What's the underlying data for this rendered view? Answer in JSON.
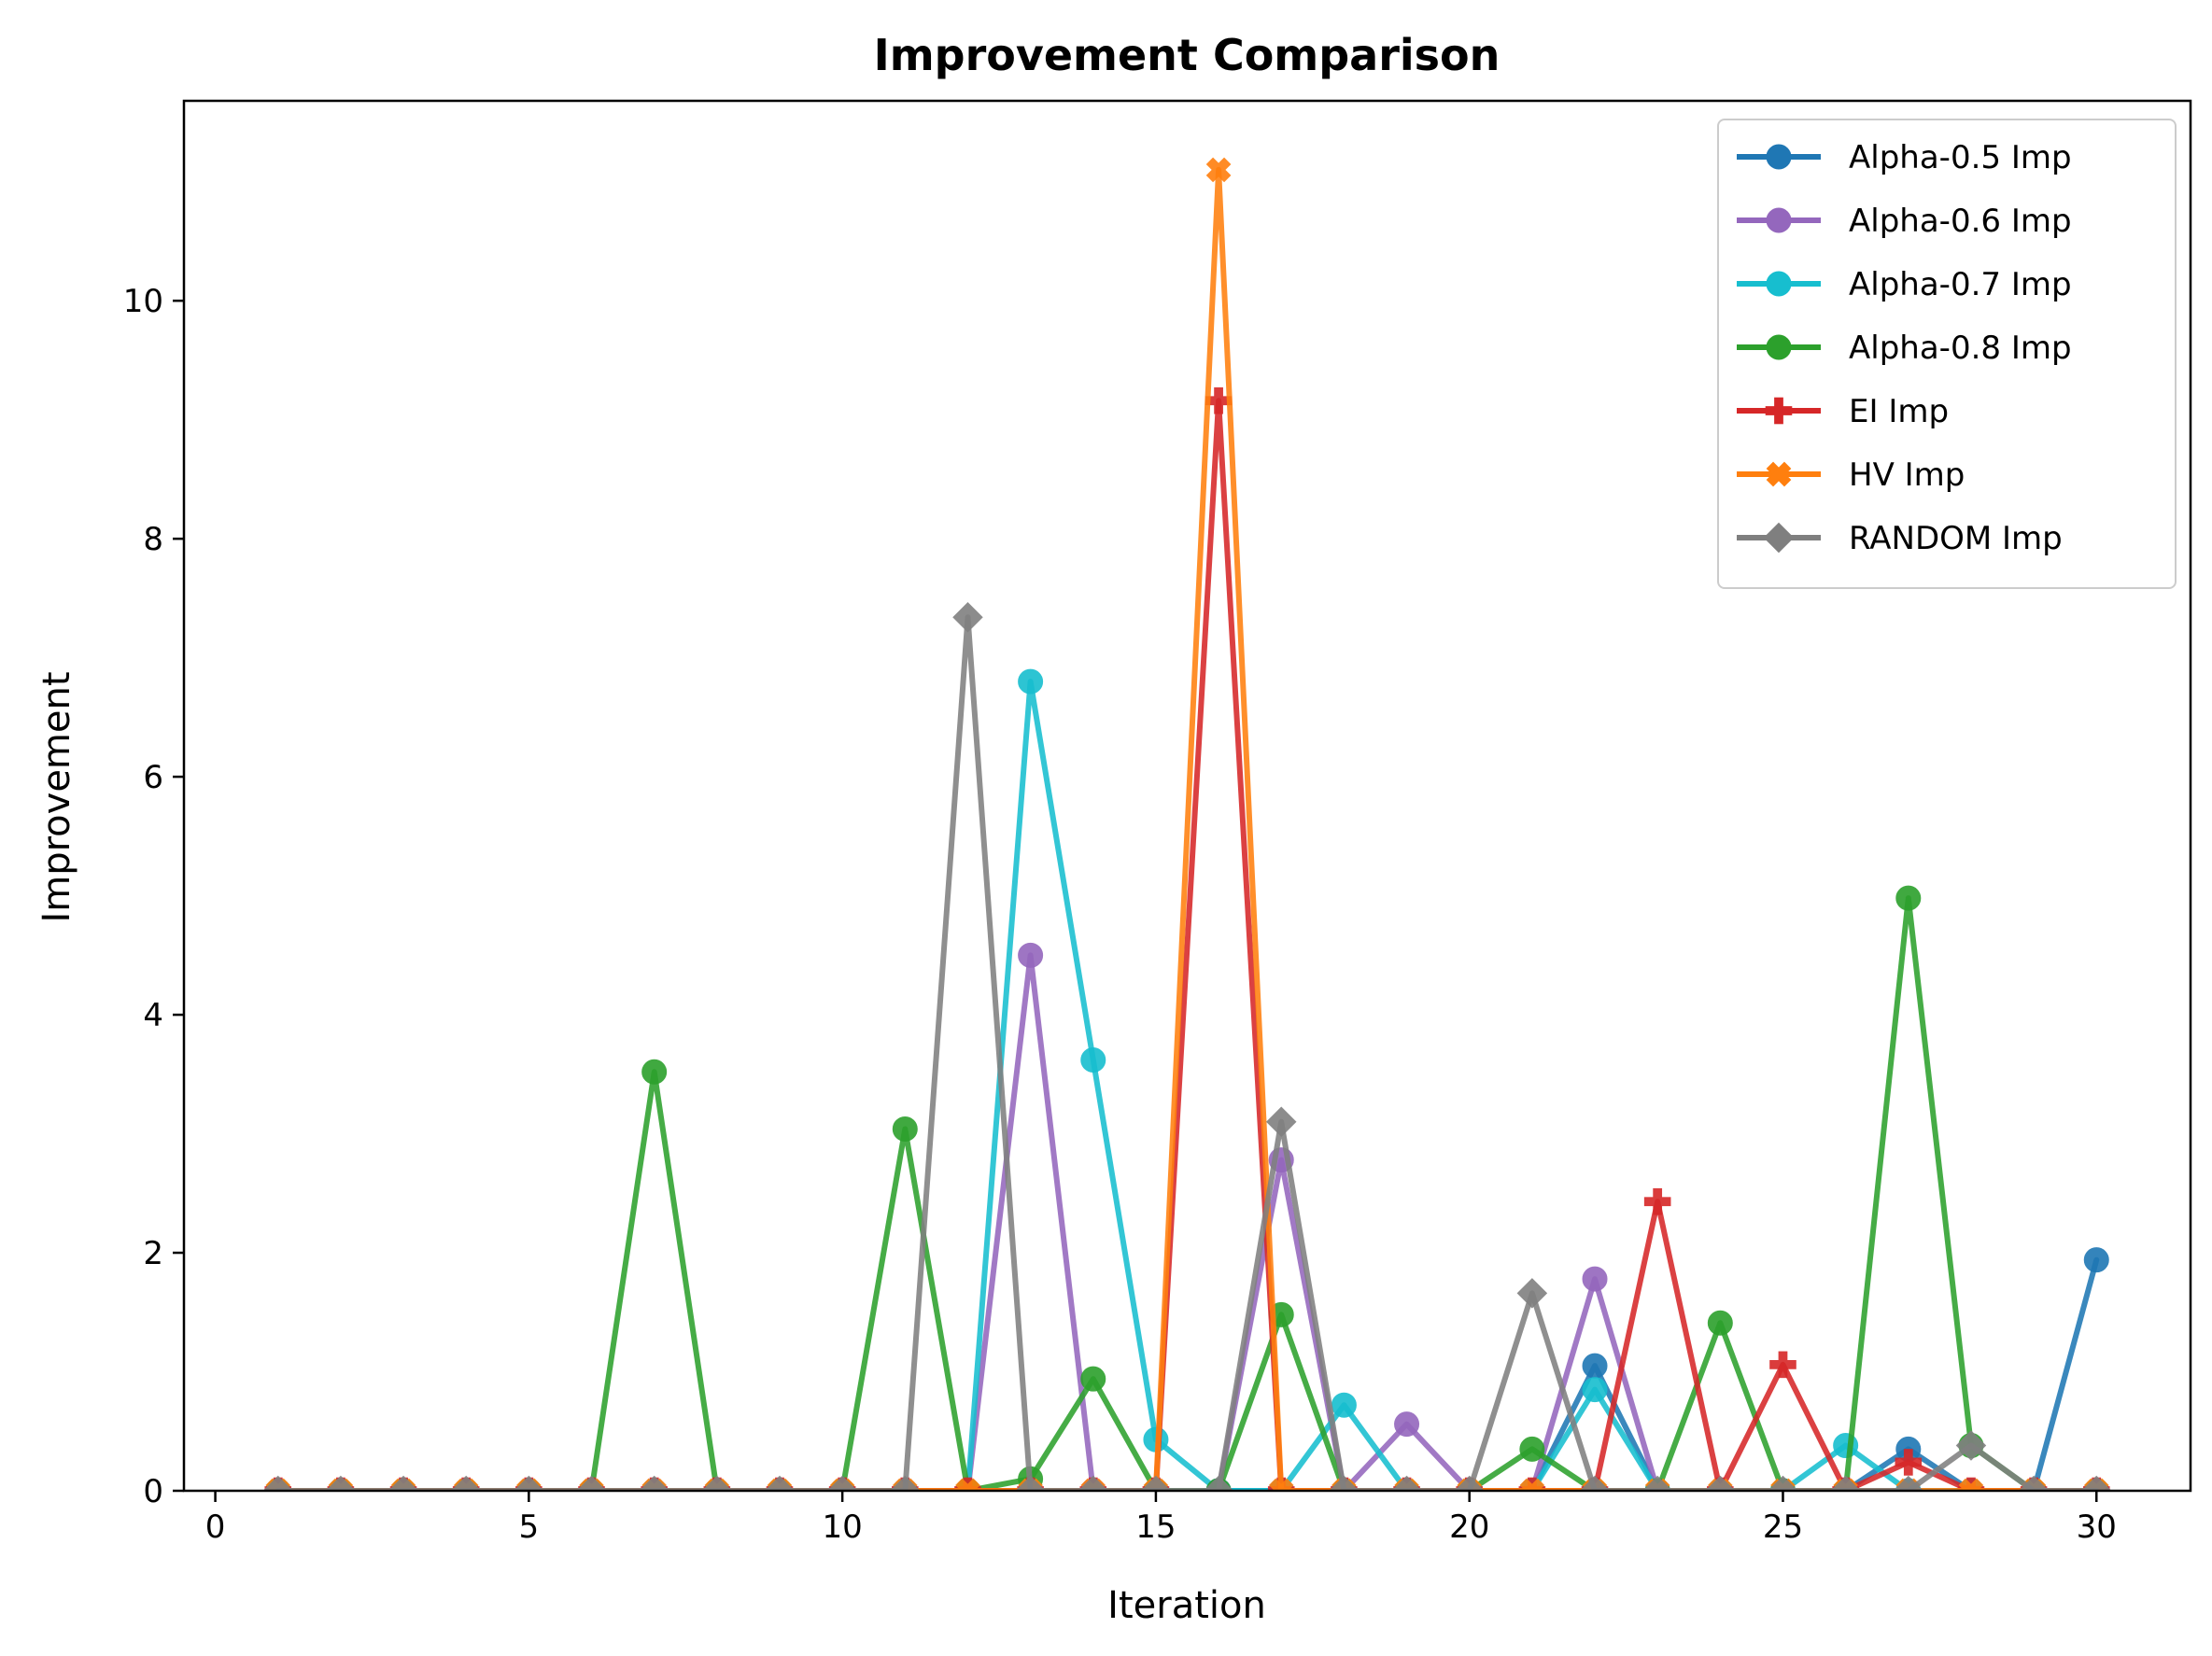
{
  "chart_data": {
    "type": "line",
    "title": "Improvement Comparison",
    "xlabel": "Iteration",
    "ylabel": "Improvement",
    "xlim": [
      -0.5,
      31.5
    ],
    "ylim": [
      0,
      11.68
    ],
    "xticks": [
      0,
      5,
      10,
      15,
      20,
      25,
      30
    ],
    "yticks": [
      0,
      2,
      4,
      6,
      8,
      10
    ],
    "grid": false,
    "legend_position": "top-right",
    "x": [
      1,
      2,
      3,
      4,
      5,
      6,
      7,
      8,
      9,
      10,
      11,
      12,
      13,
      14,
      15,
      16,
      17,
      18,
      19,
      20,
      21,
      22,
      23,
      24,
      25,
      26,
      27,
      28,
      29,
      30
    ],
    "series": [
      {
        "name": "Alpha-0.5 Imp",
        "color": "#1f77b4",
        "marker": "circle",
        "values": [
          0,
          0,
          0,
          0,
          0,
          0,
          0,
          0,
          0,
          0,
          0,
          0,
          0,
          0,
          0,
          0,
          0,
          0,
          0,
          0,
          0,
          1.05,
          0,
          0,
          0,
          0,
          0.35,
          0,
          0,
          1.94
        ]
      },
      {
        "name": "Alpha-0.6 Imp",
        "color": "#9467bd",
        "marker": "circle",
        "values": [
          0,
          0,
          0,
          0,
          0,
          0,
          0,
          0,
          0,
          0,
          0,
          0,
          4.5,
          0,
          0,
          0,
          2.78,
          0,
          0.56,
          0,
          0,
          1.78,
          0,
          0,
          0,
          0,
          0,
          0,
          0,
          0
        ]
      },
      {
        "name": "Alpha-0.7 Imp",
        "color": "#17becf",
        "marker": "circle",
        "values": [
          0,
          0,
          0,
          0,
          0,
          0,
          0,
          0,
          0,
          0,
          0,
          0,
          6.8,
          3.62,
          0.43,
          0,
          0,
          0.72,
          0,
          0,
          0,
          0.85,
          0,
          0,
          0,
          0.38,
          0,
          0,
          0,
          0
        ]
      },
      {
        "name": "Alpha-0.8 Imp",
        "color": "#2ca02c",
        "marker": "circle",
        "values": [
          0,
          0,
          0,
          0,
          0,
          0,
          3.52,
          0,
          0,
          0,
          3.04,
          0,
          0.1,
          0.94,
          0,
          0,
          1.48,
          0,
          0,
          0,
          0.35,
          0,
          0,
          1.41,
          0,
          0,
          4.98,
          0.38,
          0,
          0
        ]
      },
      {
        "name": "EI Imp",
        "color": "#d62728",
        "marker": "plus",
        "values": [
          0,
          0,
          0,
          0,
          0,
          0,
          0,
          0,
          0,
          0,
          0,
          0,
          0,
          0,
          0,
          9.16,
          0,
          0,
          0,
          0,
          0,
          0,
          2.43,
          0,
          1.06,
          0,
          0.24,
          0,
          0,
          0
        ]
      },
      {
        "name": "HV Imp",
        "color": "#ff7f0e",
        "marker": "x",
        "values": [
          0,
          0,
          0,
          0,
          0,
          0,
          0,
          0,
          0,
          0,
          0,
          0,
          0,
          0,
          0,
          11.1,
          0,
          0,
          0,
          0,
          0,
          0,
          0,
          0,
          0,
          0,
          0,
          0,
          0,
          0
        ]
      },
      {
        "name": "RANDOM Imp",
        "color": "#7f7f7f",
        "marker": "diamond",
        "values": [
          0,
          0,
          0,
          0,
          0,
          0,
          0,
          0,
          0,
          0,
          0,
          7.34,
          0,
          0,
          0,
          0,
          3.1,
          0,
          0,
          0,
          1.66,
          0,
          0,
          0,
          0,
          0,
          0,
          0.38,
          0,
          0
        ]
      }
    ]
  }
}
